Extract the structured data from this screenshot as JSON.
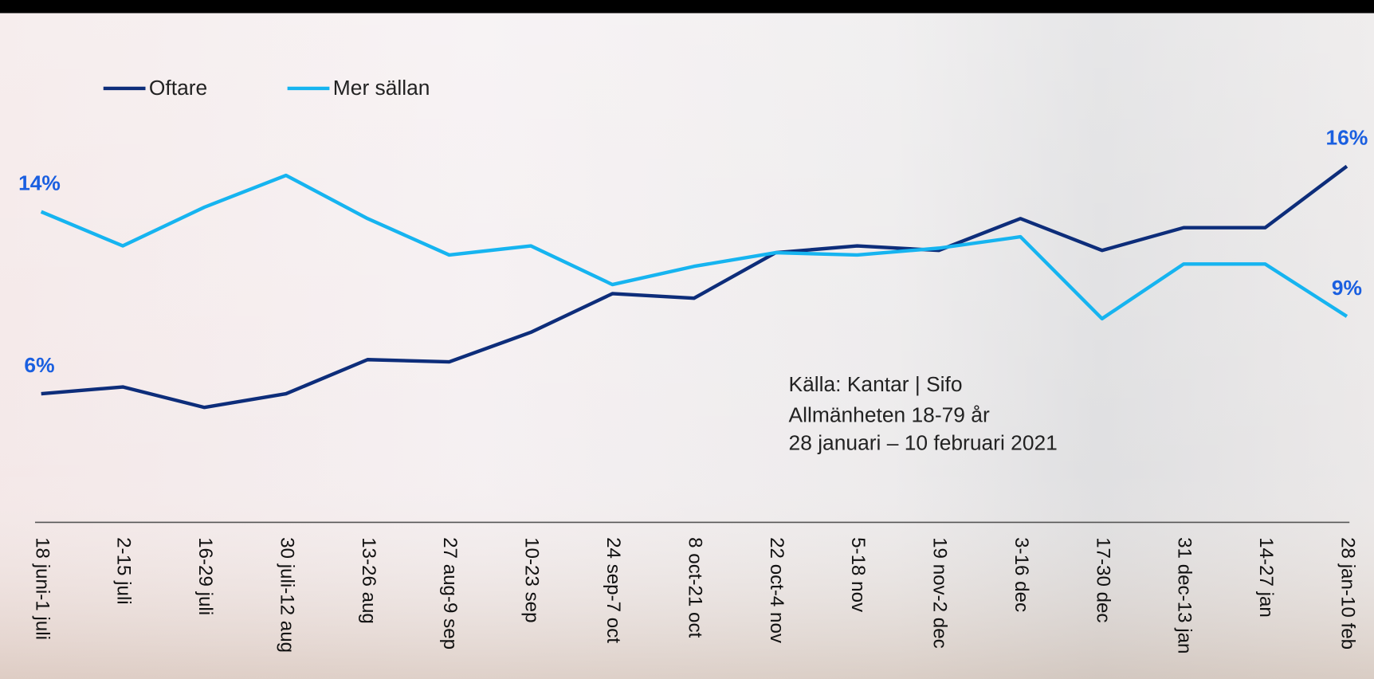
{
  "chart_data": {
    "type": "line",
    "categories": [
      "18 juni-1 juli",
      "2-15 juli",
      "16-29 juli",
      "30 juli-12 aug",
      "13-26 aug",
      "27 aug-9 sep",
      "10-23 sep",
      "24 sep-7 oct",
      "8 oct-21 oct",
      "22 oct-4 nov",
      "5-18 nov",
      "19 nov-2 dec",
      "3-16 dec",
      "17-30 dec",
      "31 dec-13 jan",
      "14-27 jan",
      "28 jan-10 feb"
    ],
    "series": [
      {
        "name": "Oftare",
        "color": "#0d2d7a",
        "values": [
          6.0,
          6.3,
          5.4,
          6.0,
          7.5,
          7.4,
          8.7,
          10.4,
          10.2,
          12.2,
          12.5,
          12.3,
          13.7,
          12.3,
          13.3,
          13.3,
          16.0
        ],
        "value_labels": [
          "6%",
          null,
          null,
          null,
          null,
          null,
          null,
          null,
          null,
          null,
          null,
          null,
          null,
          null,
          null,
          null,
          "16%"
        ]
      },
      {
        "name": "Mer sällan",
        "color": "#16b4f0",
        "values": [
          14.0,
          12.5,
          14.2,
          15.6,
          13.7,
          12.1,
          12.5,
          10.8,
          11.6,
          12.2,
          12.1,
          12.4,
          12.9,
          9.3,
          11.7,
          11.7,
          9.4
        ],
        "value_labels": [
          "14%",
          null,
          null,
          null,
          null,
          null,
          null,
          null,
          null,
          null,
          null,
          null,
          null,
          null,
          null,
          null,
          "9%"
        ]
      }
    ],
    "ylim": [
      0,
      20
    ],
    "annotations": [
      "Källa: Kantar | Sifo",
      "Allmänheten 18-79 år",
      "28 januari – 10 februari 2021"
    ]
  }
}
